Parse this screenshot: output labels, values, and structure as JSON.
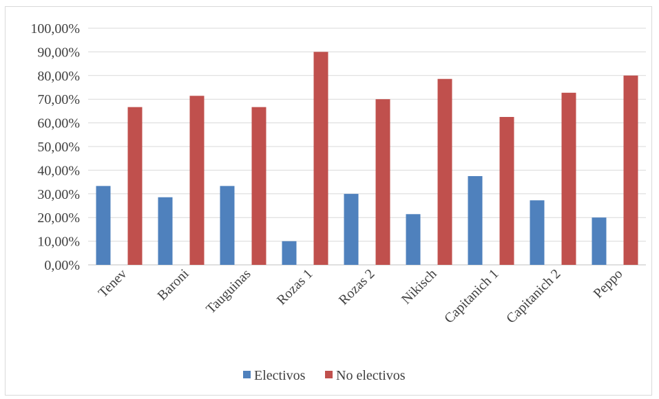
{
  "chart_data": {
    "type": "bar",
    "categories": [
      "Tenev",
      "Baroni",
      "Tauguinas",
      "Rozas 1",
      "Rozas 2",
      "Nikisch",
      "Capitanich 1",
      "Capitanich 2",
      "Peppo"
    ],
    "series": [
      {
        "name": "Electivos",
        "color": "#4f81bd",
        "values": [
          33.33,
          28.57,
          33.33,
          10.0,
          30.0,
          21.43,
          37.5,
          27.27,
          20.0
        ]
      },
      {
        "name": "No electivos",
        "color": "#c0504d",
        "values": [
          66.67,
          71.43,
          66.67,
          90.0,
          70.0,
          78.57,
          62.5,
          72.73,
          80.0
        ]
      }
    ],
    "y_ticks": [
      "0,00%",
      "10,00%",
      "20,00%",
      "30,00%",
      "40,00%",
      "50,00%",
      "60,00%",
      "70,00%",
      "80,00%",
      "90,00%",
      "100,00%"
    ],
    "ylim": [
      0,
      100
    ],
    "grid": true,
    "legend_position": "bottom",
    "title": "",
    "xlabel": "",
    "ylabel": ""
  }
}
